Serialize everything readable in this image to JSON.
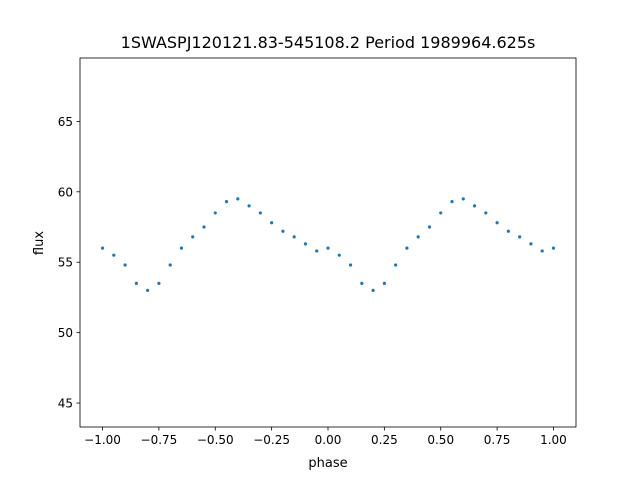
{
  "chart_data": {
    "type": "scatter",
    "title": "1SWASPJ120121.83-545108.2 Period 1989964.625s",
    "xlabel": "phase",
    "ylabel": "flux",
    "xlim": [
      -1.1,
      1.1
    ],
    "ylim": [
      43.3,
      69.5
    ],
    "xticks": [
      -1.0,
      -0.75,
      -0.5,
      -0.25,
      0.0,
      0.25,
      0.5,
      0.75,
      1.0
    ],
    "xtick_labels": [
      "−1.00",
      "−0.75",
      "−0.50",
      "−0.25",
      "0.00",
      "0.25",
      "0.50",
      "0.75",
      "1.00"
    ],
    "yticks": [
      45,
      50,
      55,
      60,
      65
    ],
    "ytick_labels": [
      "45",
      "50",
      "55",
      "60",
      "65"
    ],
    "grid": false,
    "legend": "none",
    "point_color": "#1f77b4",
    "series": [
      {
        "x": [
          -1.0,
          -0.95,
          -0.9,
          -0.85,
          -0.8,
          -0.75,
          -0.7,
          -0.65,
          -0.6,
          -0.55,
          -0.5,
          -0.45,
          -0.4,
          -0.35,
          -0.3,
          -0.25,
          -0.2,
          -0.15,
          -0.1,
          -0.05,
          0.0,
          0.05,
          0.1,
          0.15,
          0.2,
          0.25,
          0.3,
          0.35,
          0.4,
          0.45,
          0.5,
          0.55,
          0.6,
          0.65,
          0.7,
          0.75,
          0.8,
          0.85,
          0.9,
          0.95,
          1.0
        ],
        "y": [
          56.0,
          55.5,
          54.8,
          53.5,
          53.0,
          53.5,
          54.8,
          56.0,
          56.8,
          57.5,
          58.5,
          59.3,
          59.5,
          59.0,
          58.5,
          57.8,
          57.2,
          56.8,
          56.3,
          55.8,
          56.0,
          55.5,
          54.8,
          53.5,
          53.0,
          53.5,
          54.8,
          56.0,
          56.8,
          57.5,
          58.5,
          59.3,
          59.5,
          59.0,
          58.5,
          57.8,
          57.2,
          56.8,
          56.3,
          55.8,
          56.0
        ]
      }
    ]
  }
}
